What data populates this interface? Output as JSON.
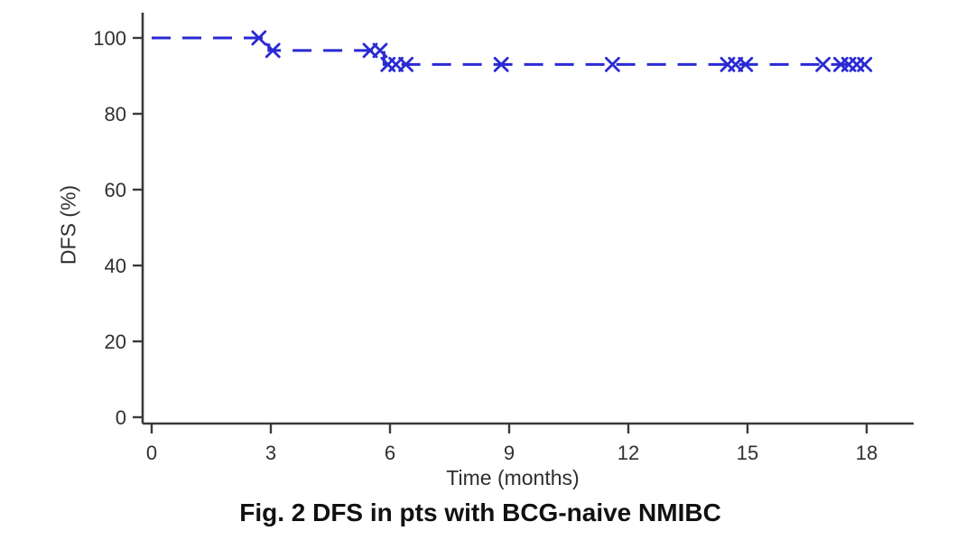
{
  "figure": {
    "caption": "Fig. 2 DFS in pts with BCG-naive NMIBC"
  },
  "chart_data": {
    "type": "line",
    "subtype": "kaplan-meier-step",
    "title": "Fig. 2 DFS in pts with BCG-naive NMIBC",
    "xlabel": "Time (months)",
    "ylabel": "DFS (%)",
    "xlim": [
      0,
      19.2
    ],
    "ylim": [
      0,
      106
    ],
    "x_ticks": [
      0,
      3,
      6,
      9,
      12,
      15,
      18
    ],
    "y_ticks": [
      0,
      20,
      40,
      60,
      80,
      100
    ],
    "grid": false,
    "legend": "none",
    "series": [
      {
        "name": "DFS",
        "color": "#2a2ad4",
        "line_style": "dashed",
        "step_points": [
          [
            0,
            100
          ],
          [
            2.95,
            100
          ],
          [
            2.95,
            96.7
          ],
          [
            5.85,
            96.7
          ],
          [
            5.85,
            93
          ],
          [
            18,
            93
          ]
        ],
        "censor_marks": [
          [
            2.7,
            100
          ],
          [
            3.05,
            96.7
          ],
          [
            5.5,
            96.7
          ],
          [
            5.75,
            96.7
          ],
          [
            5.95,
            93
          ],
          [
            6.15,
            93
          ],
          [
            6.4,
            93
          ],
          [
            8.8,
            93
          ],
          [
            11.6,
            93
          ],
          [
            14.5,
            93
          ],
          [
            14.7,
            93
          ],
          [
            14.95,
            93
          ],
          [
            16.9,
            93
          ],
          [
            17.35,
            93
          ],
          [
            17.55,
            93
          ],
          [
            17.75,
            93
          ],
          [
            17.95,
            93
          ]
        ]
      }
    ]
  },
  "style": {
    "line_color": "#2a2ad4",
    "axis_color": "#3a3a3a",
    "tick_label_color": "#303030",
    "background": "#ffffff"
  }
}
